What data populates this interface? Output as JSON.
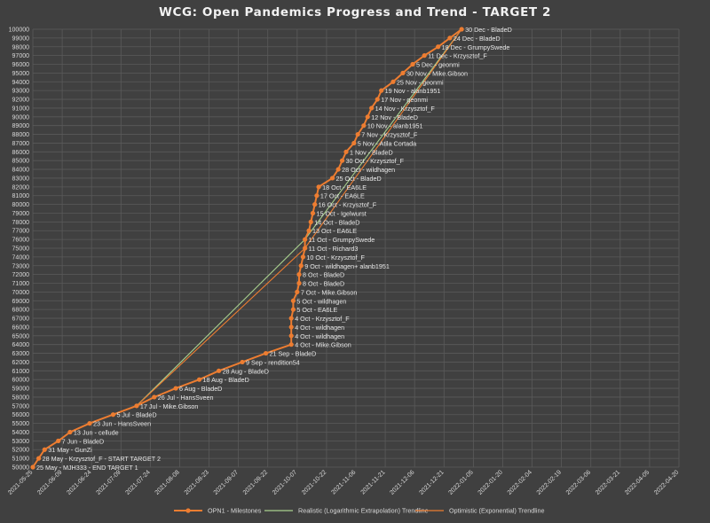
{
  "chart_data": {
    "type": "line",
    "title": "WCG: Open Pandemics Progress and Trend - TARGET 2",
    "xlabel": "",
    "ylabel": "",
    "xlim": [
      "2021-05-25",
      "2022-04-20"
    ],
    "ylim": [
      50000,
      100000
    ],
    "y_ticks": [
      50000,
      51000,
      52000,
      53000,
      54000,
      55000,
      56000,
      57000,
      58000,
      59000,
      60000,
      61000,
      62000,
      63000,
      64000,
      65000,
      66000,
      67000,
      68000,
      69000,
      70000,
      71000,
      72000,
      73000,
      74000,
      75000,
      76000,
      77000,
      78000,
      79000,
      80000,
      81000,
      82000,
      83000,
      84000,
      85000,
      86000,
      87000,
      88000,
      89000,
      90000,
      91000,
      92000,
      93000,
      94000,
      95000,
      96000,
      97000,
      98000,
      99000,
      100000
    ],
    "x_ticks": [
      "2021-05-25",
      "2021-06-09",
      "2021-06-24",
      "2021-07-09",
      "2021-07-24",
      "2021-08-08",
      "2021-08-23",
      "2021-09-07",
      "2021-09-22",
      "2021-10-07",
      "2021-10-22",
      "2021-11-06",
      "2021-11-21",
      "2021-12-06",
      "2021-12-21",
      "2022-01-05",
      "2022-01-20",
      "2022-02-04",
      "2022-02-19",
      "2022-03-06",
      "2022-03-21",
      "2022-04-05",
      "2022-04-20"
    ],
    "grid": true,
    "legend_position": "bottom",
    "series": [
      {
        "name": "OPN1 - Milestones",
        "color": "#ed7d31",
        "marker": "circle",
        "points": [
          {
            "x": "2021-05-25",
            "y": 50000,
            "label": "25 May - MJH333 - END TARGET 1"
          },
          {
            "x": "2021-05-28",
            "y": 51000,
            "label": "28 May - Krzysztof_F - START TARGET 2"
          },
          {
            "x": "2021-05-31",
            "y": 52000,
            "label": "31 May - GunZi"
          },
          {
            "x": "2021-06-07",
            "y": 53000,
            "label": "7 Jun - BladeD"
          },
          {
            "x": "2021-06-13",
            "y": 54000,
            "label": "13 Jun - cellude"
          },
          {
            "x": "2021-06-23",
            "y": 55000,
            "label": "23 Jun - HansSveen"
          },
          {
            "x": "2021-07-05",
            "y": 56000,
            "label": "5 Jul - BladeD"
          },
          {
            "x": "2021-07-17",
            "y": 57000,
            "label": "17 Jul - Mike.Gibson"
          },
          {
            "x": "2021-07-26",
            "y": 58000,
            "label": "26 Jul - HansSveen"
          },
          {
            "x": "2021-08-06",
            "y": 59000,
            "label": "6 Aug - BladeD"
          },
          {
            "x": "2021-08-18",
            "y": 60000,
            "label": "18 Aug - BladeD"
          },
          {
            "x": "2021-08-28",
            "y": 61000,
            "label": "28 Aug - BladeD"
          },
          {
            "x": "2021-09-09",
            "y": 62000,
            "label": "9 Sep - rendition54"
          },
          {
            "x": "2021-09-21",
            "y": 63000,
            "label": "21 Sep - BladeD"
          },
          {
            "x": "2021-10-04",
            "y": 64000,
            "label": "4 Oct - Mike.Gibson"
          },
          {
            "x": "2021-10-04",
            "y": 65000,
            "label": "4 Oct - wildhagen"
          },
          {
            "x": "2021-10-04",
            "y": 66000,
            "label": "4 Oct - wildhagen"
          },
          {
            "x": "2021-10-04",
            "y": 67000,
            "label": "4 Oct - Krzysztof_F"
          },
          {
            "x": "2021-10-05",
            "y": 68000,
            "label": "5 Oct - EA6LE"
          },
          {
            "x": "2021-10-05",
            "y": 69000,
            "label": "5 Oct - wildhagen"
          },
          {
            "x": "2021-10-07",
            "y": 70000,
            "label": "7 Oct - Mike.Gibson"
          },
          {
            "x": "2021-10-08",
            "y": 71000,
            "label": "8 Oct - BladeD"
          },
          {
            "x": "2021-10-08",
            "y": 72000,
            "label": "8 Oct - BladeD"
          },
          {
            "x": "2021-10-09",
            "y": 73000,
            "label": "9 Oct - wildhagen+ alanb1951"
          },
          {
            "x": "2021-10-10",
            "y": 74000,
            "label": "10 Oct - Krzysztof_F"
          },
          {
            "x": "2021-10-11",
            "y": 75000,
            "label": "11 Oct - Richard3"
          },
          {
            "x": "2021-10-11",
            "y": 76000,
            "label": "11 Oct - GrumpySwede"
          },
          {
            "x": "2021-10-13",
            "y": 77000,
            "label": "13 Oct - EA6LE"
          },
          {
            "x": "2021-10-14",
            "y": 78000,
            "label": "14 Oct - BladeD"
          },
          {
            "x": "2021-10-15",
            "y": 79000,
            "label": "15 Oct - Igelwurst"
          },
          {
            "x": "2021-10-16",
            "y": 80000,
            "label": "16 Oct - Krzysztof_F"
          },
          {
            "x": "2021-10-17",
            "y": 81000,
            "label": "17 Oct - EA6LE"
          },
          {
            "x": "2021-10-18",
            "y": 82000,
            "label": "18 Oct - EA6LE"
          },
          {
            "x": "2021-10-25",
            "y": 83000,
            "label": "25 Oct - BladeD"
          },
          {
            "x": "2021-10-28",
            "y": 84000,
            "label": "28 Oct - wildhagen"
          },
          {
            "x": "2021-10-30",
            "y": 85000,
            "label": "30 Oct - Krzysztof_F"
          },
          {
            "x": "2021-11-01",
            "y": 86000,
            "label": "1 Nov - BladeD"
          },
          {
            "x": "2021-11-05",
            "y": 87000,
            "label": "5 Nov - Atila Cortada"
          },
          {
            "x": "2021-11-07",
            "y": 88000,
            "label": "7 Nov - Krzysztof_F"
          },
          {
            "x": "2021-11-10",
            "y": 89000,
            "label": "10 Nov - alanb1951"
          },
          {
            "x": "2021-11-12",
            "y": 90000,
            "label": "12 Nov - BladeD"
          },
          {
            "x": "2021-11-14",
            "y": 91000,
            "label": "14 Nov - Krzysztof_F"
          },
          {
            "x": "2021-11-17",
            "y": 92000,
            "label": "17 Nov - geonmi"
          },
          {
            "x": "2021-11-19",
            "y": 93000,
            "label": "19 Nov - alanb1951"
          },
          {
            "x": "2021-11-25",
            "y": 94000,
            "label": "25 Nov - geonmi"
          },
          {
            "x": "2021-11-30",
            "y": 95000,
            "label": "30 Nov - Mike.Gibson"
          },
          {
            "x": "2021-12-05",
            "y": 96000,
            "label": "5 Dec - geonmi"
          },
          {
            "x": "2021-12-11",
            "y": 97000,
            "label": "11 Dec - Krzysztof_F"
          },
          {
            "x": "2021-12-18",
            "y": 98000,
            "label": "18 Dec - GrumpySwede"
          },
          {
            "x": "2021-12-24",
            "y": 99000,
            "label": "24 Dec - BladeD"
          },
          {
            "x": "2021-12-30",
            "y": 100000,
            "label": "30 Dec - BladeD"
          }
        ]
      },
      {
        "name": "Realistic (Logarithmic Extrapolation) Trendline",
        "color": "#a9d18e",
        "points": [
          {
            "x": "2021-07-17",
            "y": 57000
          },
          {
            "x": "2021-10-11",
            "y": 76000
          },
          {
            "x": "2021-12-30",
            "y": 100000
          }
        ]
      },
      {
        "name": "Optimistic (Exponential) Trendline",
        "color": "#ed7d31",
        "points": [
          {
            "x": "2021-07-17",
            "y": 57000
          },
          {
            "x": "2021-10-11",
            "y": 75000
          },
          {
            "x": "2021-12-30",
            "y": 100000
          }
        ]
      }
    ]
  }
}
